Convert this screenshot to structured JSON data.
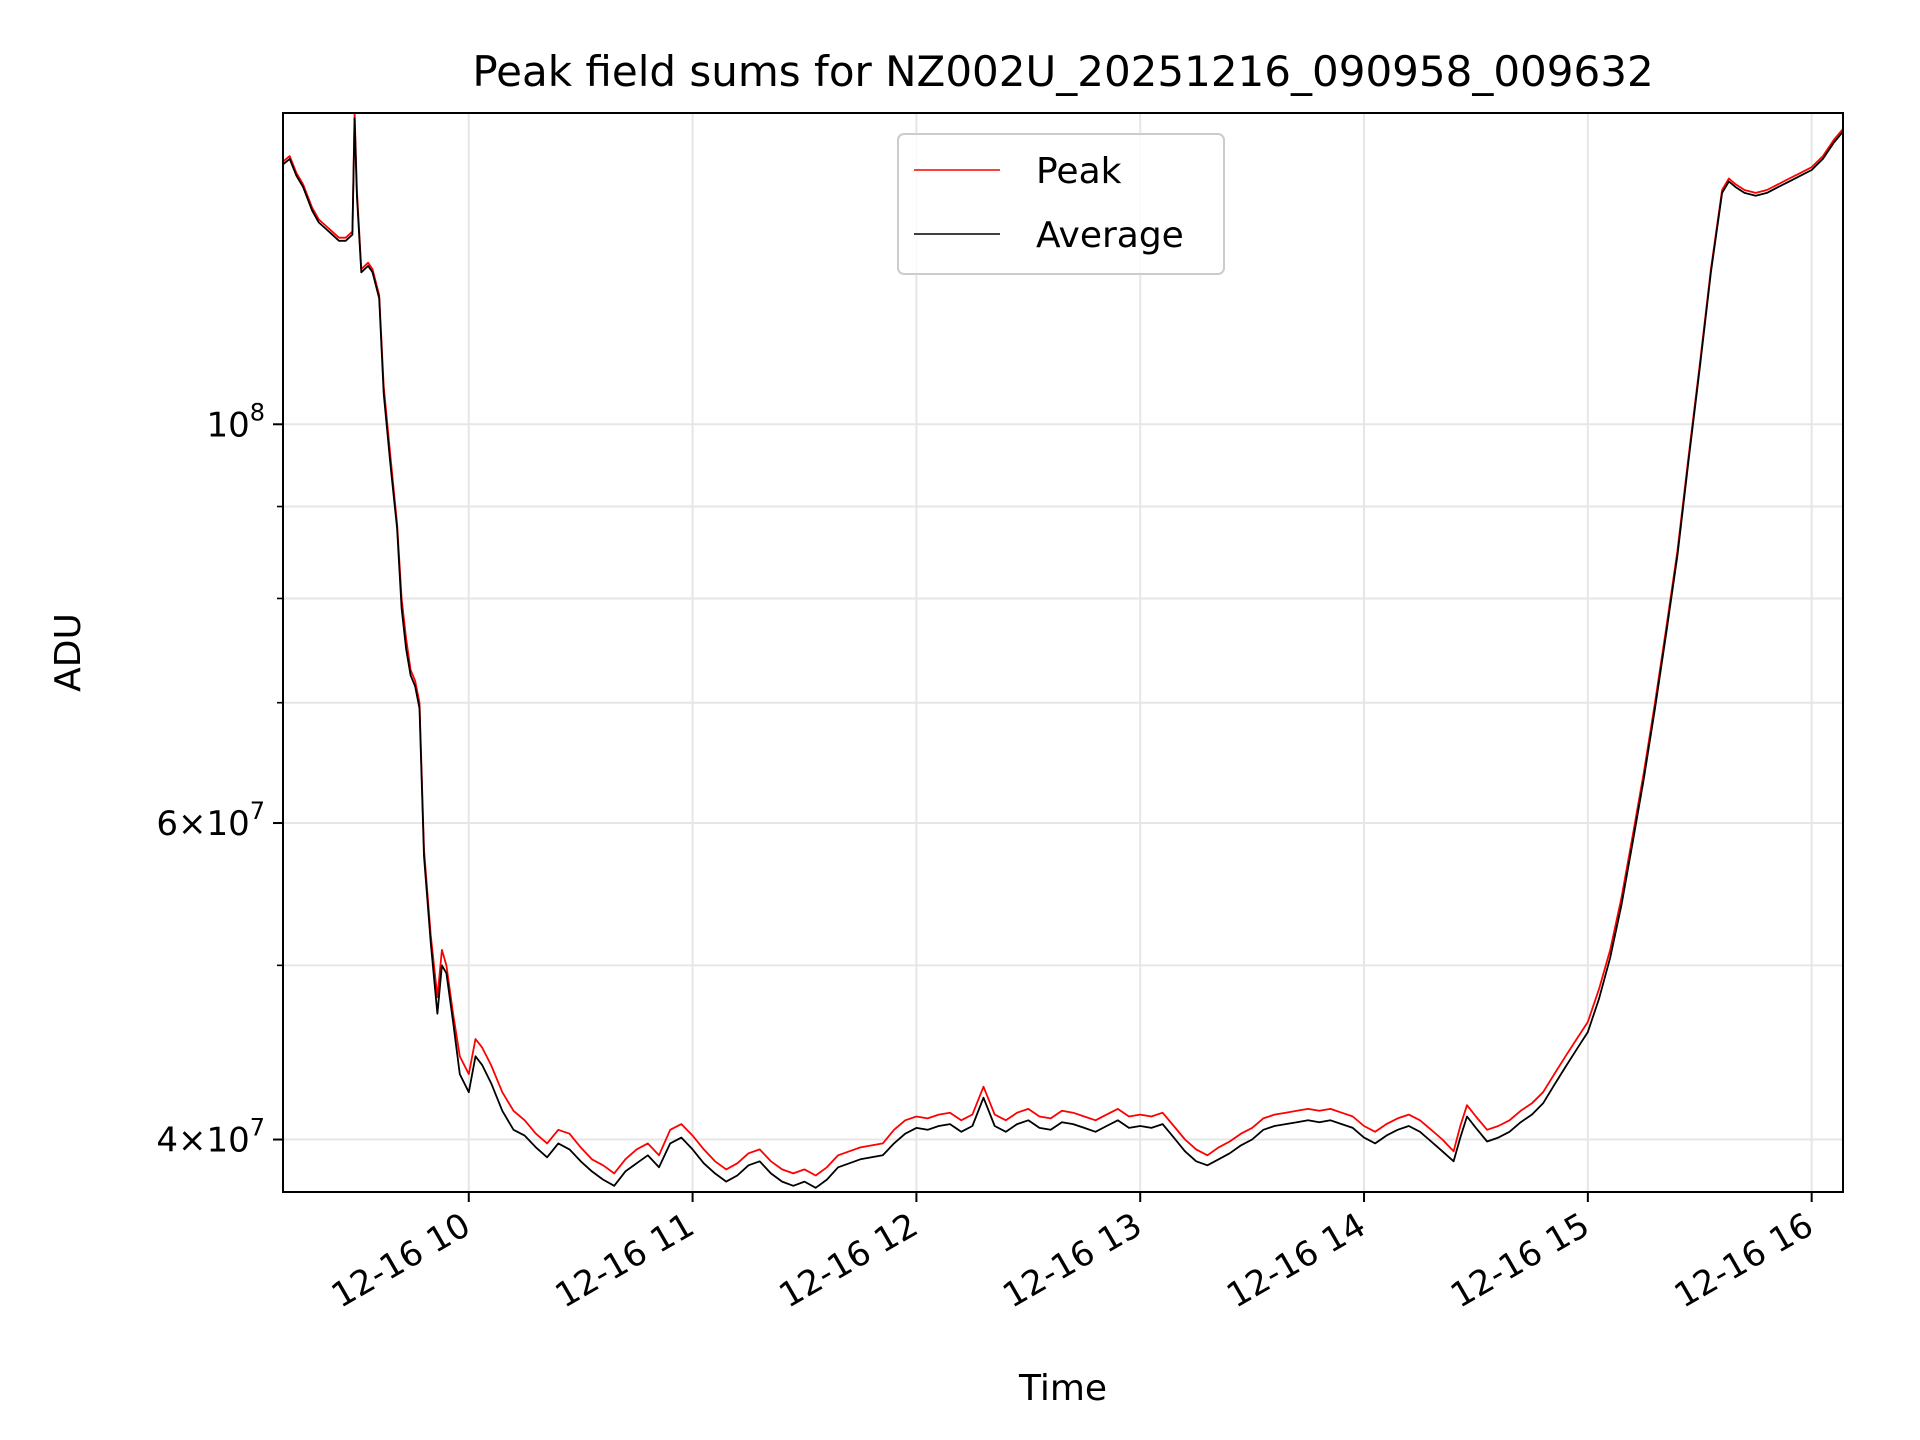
{
  "chart_data": {
    "type": "line",
    "title": "Peak field sums for NZ002U_20251216_090958_009632",
    "xlabel": "Time",
    "ylabel": "ADU",
    "yscale": "log",
    "xlim": [
      9.17,
      16.14
    ],
    "ylim": [
      37400000,
      149000000
    ],
    "grid": true,
    "legend": {
      "position": "upper-center",
      "entries": [
        "Peak",
        "Average"
      ]
    },
    "x_ticks": [
      {
        "value": 10,
        "label": "12-16 10"
      },
      {
        "value": 11,
        "label": "12-16 11"
      },
      {
        "value": 12,
        "label": "12-16 12"
      },
      {
        "value": 13,
        "label": "12-16 13"
      },
      {
        "value": 14,
        "label": "12-16 14"
      },
      {
        "value": 15,
        "label": "12-16 15"
      },
      {
        "value": 16,
        "label": "12-16 16"
      }
    ],
    "y_major_ticks": [
      {
        "value": 40000000,
        "mantissa": "4",
        "exponent": "7"
      },
      {
        "value": 60000000,
        "mantissa": "6",
        "exponent": "7"
      },
      {
        "value": 100000000,
        "mantissa": "",
        "exponent": "8"
      }
    ],
    "y_minor_ticks": [
      50000000,
      70000000,
      80000000,
      90000000
    ],
    "x_unit": "hours (2025-12-16)",
    "series": [
      {
        "name": "Peak",
        "color": "#ff0000",
        "x": [
          9.17,
          9.2,
          9.23,
          9.26,
          9.3,
          9.33,
          9.36,
          9.39,
          9.42,
          9.45,
          9.48,
          9.49,
          9.5,
          9.52,
          9.55,
          9.57,
          9.6,
          9.62,
          9.65,
          9.68,
          9.7,
          9.72,
          9.74,
          9.76,
          9.78,
          9.8,
          9.83,
          9.86,
          9.88,
          9.9,
          9.93,
          9.96,
          10.0,
          10.03,
          10.06,
          10.1,
          10.15,
          10.2,
          10.25,
          10.3,
          10.35,
          10.4,
          10.45,
          10.5,
          10.55,
          10.6,
          10.65,
          10.7,
          10.75,
          10.8,
          10.85,
          10.9,
          10.95,
          11.0,
          11.05,
          11.1,
          11.15,
          11.2,
          11.25,
          11.3,
          11.35,
          11.4,
          11.45,
          11.5,
          11.55,
          11.6,
          11.65,
          11.7,
          11.75,
          11.8,
          11.85,
          11.9,
          11.95,
          12.0,
          12.05,
          12.1,
          12.15,
          12.2,
          12.25,
          12.3,
          12.35,
          12.4,
          12.45,
          12.5,
          12.55,
          12.6,
          12.65,
          12.7,
          12.75,
          12.8,
          12.85,
          12.9,
          12.95,
          13.0,
          13.05,
          13.1,
          13.15,
          13.2,
          13.25,
          13.3,
          13.35,
          13.4,
          13.45,
          13.5,
          13.55,
          13.6,
          13.65,
          13.7,
          13.75,
          13.8,
          13.85,
          13.9,
          13.95,
          14.0,
          14.05,
          14.1,
          14.15,
          14.2,
          14.25,
          14.3,
          14.35,
          14.4,
          14.43,
          14.46,
          14.5,
          14.55,
          14.6,
          14.65,
          14.7,
          14.75,
          14.8,
          14.85,
          14.9,
          14.95,
          15.0,
          15.05,
          15.1,
          15.15,
          15.2,
          15.25,
          15.3,
          15.35,
          15.4,
          15.45,
          15.5,
          15.55,
          15.6,
          15.63,
          15.66,
          15.7,
          15.75,
          15.8,
          15.85,
          15.9,
          15.95,
          16.0,
          16.05,
          16.1,
          16.14
        ],
        "y": [
          140000000,
          141000000,
          138000000,
          136000000,
          132000000,
          130000000,
          129000000,
          128000000,
          127000000,
          127000000,
          128000000,
          149000000,
          135000000,
          122000000,
          123000000,
          122000000,
          118000000,
          105000000,
          96000000,
          88000000,
          80000000,
          76000000,
          73000000,
          72000000,
          70000000,
          58000000,
          52000000,
          48000000,
          51000000,
          50000000,
          47000000,
          44500000,
          43500000,
          45500000,
          45000000,
          44000000,
          42500000,
          41500000,
          41000000,
          40300000,
          39800000,
          40500000,
          40300000,
          39600000,
          39000000,
          38700000,
          38300000,
          39000000,
          39500000,
          39800000,
          39200000,
          40500000,
          40800000,
          40200000,
          39500000,
          38900000,
          38500000,
          38800000,
          39300000,
          39500000,
          38900000,
          38500000,
          38300000,
          38500000,
          38200000,
          38600000,
          39200000,
          39400000,
          39600000,
          39700000,
          39800000,
          40500000,
          41000000,
          41200000,
          41100000,
          41300000,
          41400000,
          41000000,
          41300000,
          42800000,
          41300000,
          41000000,
          41400000,
          41600000,
          41200000,
          41100000,
          41500000,
          41400000,
          41200000,
          41000000,
          41300000,
          41600000,
          41200000,
          41300000,
          41200000,
          41400000,
          40700000,
          40000000,
          39500000,
          39200000,
          39600000,
          39900000,
          40300000,
          40600000,
          41100000,
          41300000,
          41400000,
          41500000,
          41600000,
          41500000,
          41600000,
          41400000,
          41200000,
          40700000,
          40400000,
          40800000,
          41100000,
          41300000,
          41000000,
          40500000,
          40000000,
          39400000,
          40700000,
          41800000,
          41200000,
          40500000,
          40700000,
          41000000,
          41500000,
          41900000,
          42500000,
          43500000,
          44500000,
          45500000,
          46500000,
          48500000,
          51000000,
          54500000,
          59000000,
          64000000,
          70000000,
          77000000,
          85000000,
          96000000,
          108000000,
          122000000,
          135000000,
          137000000,
          136000000,
          135000000,
          134500000,
          135000000,
          136000000,
          137000000,
          138000000,
          139000000,
          141000000,
          144000000,
          146000000
        ]
      },
      {
        "name": "Average",
        "color": "#000000",
        "x": [
          9.17,
          9.2,
          9.23,
          9.26,
          9.3,
          9.33,
          9.36,
          9.39,
          9.42,
          9.45,
          9.48,
          9.49,
          9.5,
          9.52,
          9.55,
          9.57,
          9.6,
          9.62,
          9.65,
          9.68,
          9.7,
          9.72,
          9.74,
          9.76,
          9.78,
          9.8,
          9.83,
          9.86,
          9.88,
          9.9,
          9.93,
          9.96,
          10.0,
          10.03,
          10.06,
          10.1,
          10.15,
          10.2,
          10.25,
          10.3,
          10.35,
          10.4,
          10.45,
          10.5,
          10.55,
          10.6,
          10.65,
          10.7,
          10.75,
          10.8,
          10.85,
          10.9,
          10.95,
          11.0,
          11.05,
          11.1,
          11.15,
          11.2,
          11.25,
          11.3,
          11.35,
          11.4,
          11.45,
          11.5,
          11.55,
          11.6,
          11.65,
          11.7,
          11.75,
          11.8,
          11.85,
          11.9,
          11.95,
          12.0,
          12.05,
          12.1,
          12.15,
          12.2,
          12.25,
          12.3,
          12.35,
          12.4,
          12.45,
          12.5,
          12.55,
          12.6,
          12.65,
          12.7,
          12.75,
          12.8,
          12.85,
          12.9,
          12.95,
          13.0,
          13.05,
          13.1,
          13.15,
          13.2,
          13.25,
          13.3,
          13.35,
          13.4,
          13.45,
          13.5,
          13.55,
          13.6,
          13.65,
          13.7,
          13.75,
          13.8,
          13.85,
          13.9,
          13.95,
          14.0,
          14.05,
          14.1,
          14.15,
          14.2,
          14.25,
          14.3,
          14.35,
          14.4,
          14.43,
          14.46,
          14.5,
          14.55,
          14.6,
          14.65,
          14.7,
          14.75,
          14.8,
          14.85,
          14.9,
          14.95,
          15.0,
          15.05,
          15.1,
          15.15,
          15.2,
          15.25,
          15.3,
          15.35,
          15.4,
          15.45,
          15.5,
          15.55,
          15.6,
          15.63,
          15.66,
          15.7,
          15.75,
          15.8,
          15.85,
          15.9,
          15.95,
          16.0,
          16.05,
          16.1,
          16.14
        ],
        "y": [
          139500000,
          140500000,
          137500000,
          135500000,
          131500000,
          129500000,
          128500000,
          127500000,
          126500000,
          126500000,
          127500000,
          148000000,
          134000000,
          121500000,
          122500000,
          121500000,
          117500000,
          104000000,
          95000000,
          87500000,
          79000000,
          75000000,
          72500000,
          71500000,
          69500000,
          57500000,
          51500000,
          47000000,
          50000000,
          49500000,
          46500000,
          43500000,
          42500000,
          44500000,
          44000000,
          43000000,
          41500000,
          40500000,
          40200000,
          39600000,
          39100000,
          39800000,
          39500000,
          38900000,
          38400000,
          38000000,
          37700000,
          38400000,
          38800000,
          39200000,
          38600000,
          39800000,
          40100000,
          39500000,
          38800000,
          38300000,
          37900000,
          38200000,
          38700000,
          38900000,
          38300000,
          37900000,
          37700000,
          37900000,
          37600000,
          38000000,
          38600000,
          38800000,
          39000000,
          39100000,
          39200000,
          39800000,
          40300000,
          40600000,
          40500000,
          40700000,
          40800000,
          40400000,
          40700000,
          42200000,
          40700000,
          40400000,
          40800000,
          41000000,
          40600000,
          40500000,
          40900000,
          40800000,
          40600000,
          40400000,
          40700000,
          41000000,
          40600000,
          40700000,
          40600000,
          40800000,
          40100000,
          39400000,
          38900000,
          38700000,
          39000000,
          39300000,
          39700000,
          40000000,
          40500000,
          40700000,
          40800000,
          40900000,
          41000000,
          40900000,
          41000000,
          40800000,
          40600000,
          40100000,
          39800000,
          40200000,
          40500000,
          40700000,
          40400000,
          39900000,
          39400000,
          38900000,
          40100000,
          41200000,
          40600000,
          39900000,
          40100000,
          40400000,
          40900000,
          41300000,
          41900000,
          42900000,
          43900000,
          44900000,
          45900000,
          47900000,
          50500000,
          54000000,
          58500000,
          63500000,
          69500000,
          76500000,
          84500000,
          95500000,
          107500000,
          121500000,
          134500000,
          136500000,
          135500000,
          134500000,
          134000000,
          134500000,
          135500000,
          136500000,
          137500000,
          138500000,
          140500000,
          143500000,
          145500000
        ]
      }
    ]
  }
}
